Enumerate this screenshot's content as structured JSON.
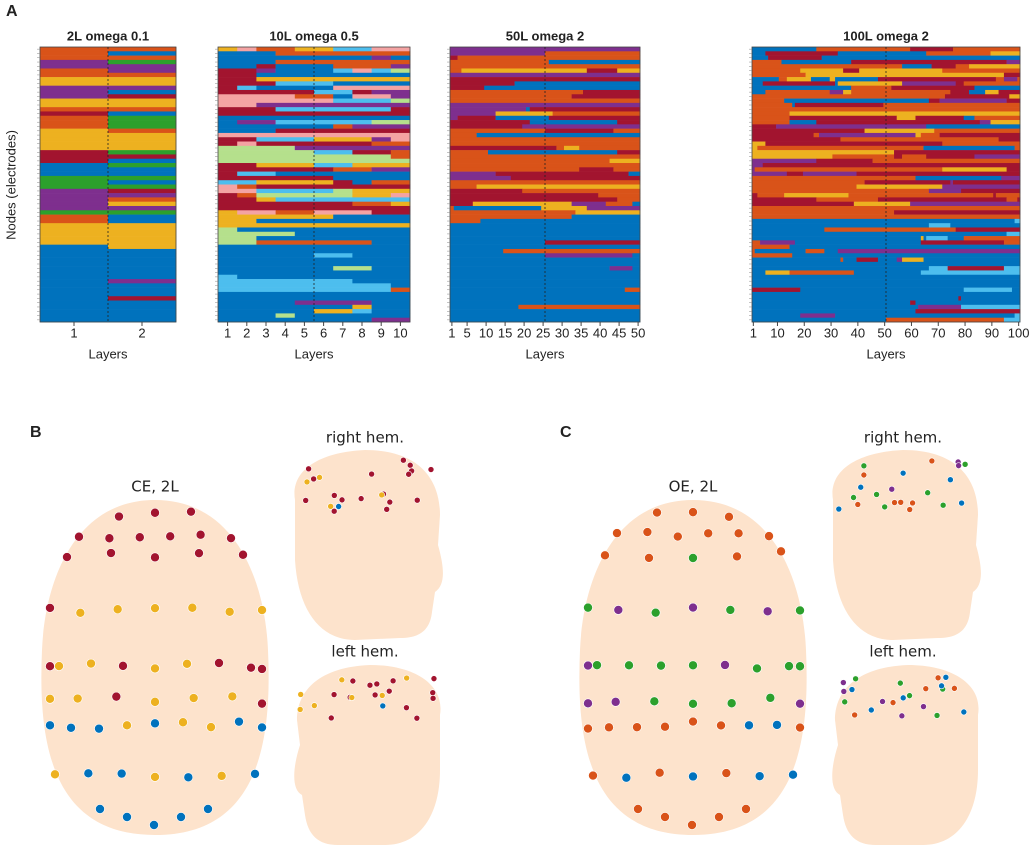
{
  "figure": {
    "panel_a": "A",
    "panel_b": "B",
    "panel_c": "C",
    "ylabel": "Nodes (electrodes)",
    "b_top": "CE, 2L",
    "b_right": "right hem.",
    "b_left": "left hem.",
    "c_top": "OE, 2L",
    "c_right": "right hem.",
    "c_left": "left hem."
  },
  "chart_data": [
    {
      "type": "heatmap",
      "title": "2L omega 0.1",
      "xlabel": "Layers",
      "xlim": [
        0.5,
        2.5
      ],
      "xticks": [
        1,
        2
      ]
    },
    {
      "type": "heatmap",
      "title": "10L omega 0.5",
      "xlabel": "Layers",
      "xlim": [
        0.5,
        10.5
      ],
      "xticks": [
        1,
        2,
        3,
        4,
        5,
        6,
        7,
        8,
        9,
        10
      ]
    },
    {
      "type": "heatmap",
      "title": "50L omega 2",
      "xlabel": "Layers",
      "xlim": [
        0.5,
        50.5
      ],
      "xticks": [
        1,
        5,
        10,
        15,
        20,
        25,
        30,
        35,
        40,
        45,
        50
      ]
    },
    {
      "type": "heatmap",
      "title": "100L omega 2",
      "xlabel": "Layers",
      "xlim": [
        0.5,
        100.5
      ],
      "xticks": [
        1,
        10,
        20,
        30,
        40,
        50,
        60,
        70,
        80,
        90,
        100
      ]
    }
  ]
}
